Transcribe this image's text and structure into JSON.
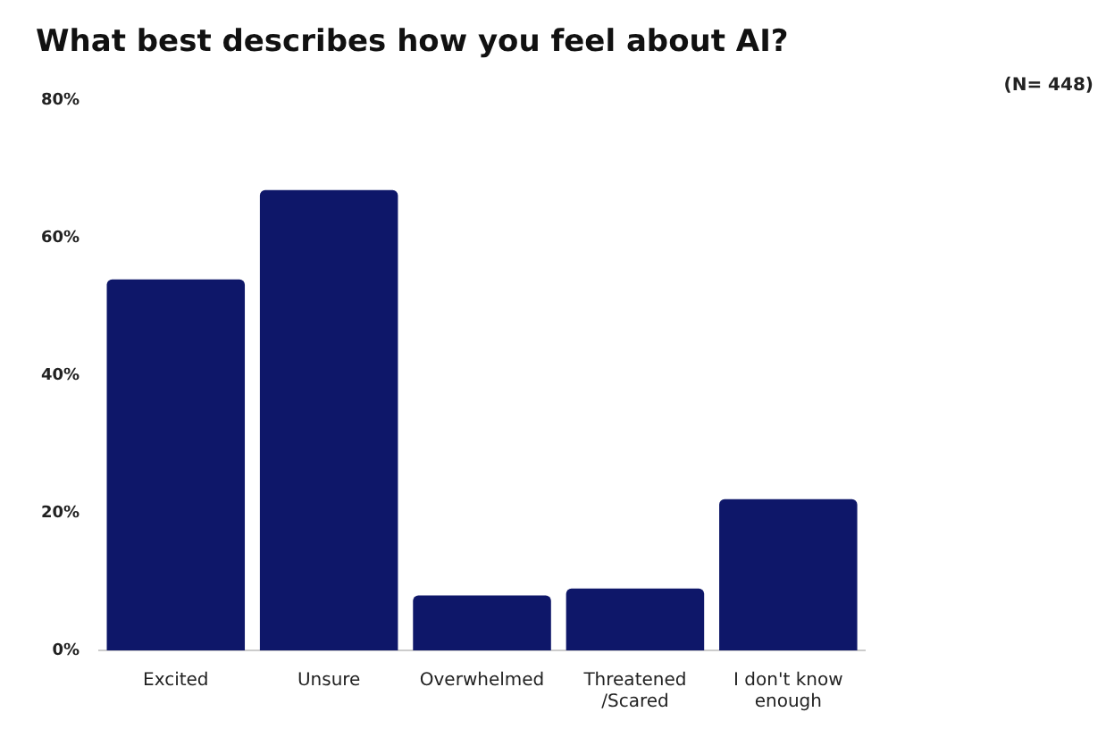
{
  "chart_data": {
    "type": "bar",
    "title": "What best describes how you feel about AI?",
    "annotations": [
      "(N= 448)"
    ],
    "categories": [
      "Excited",
      "Unsure",
      "Overwhelmed",
      "Threatened /Scared",
      "I don't know enough"
    ],
    "values": [
      54,
      67,
      8,
      9,
      22
    ],
    "color": "#0e1769",
    "ylim": [
      0,
      80
    ],
    "yticks": [
      {
        "value": 0,
        "label": "0%"
      },
      {
        "value": 20,
        "label": "20%"
      },
      {
        "value": 40,
        "label": "40%"
      },
      {
        "value": 60,
        "label": "60%"
      },
      {
        "value": 80,
        "label": "80%"
      }
    ],
    "grid": false,
    "legend": false
  }
}
